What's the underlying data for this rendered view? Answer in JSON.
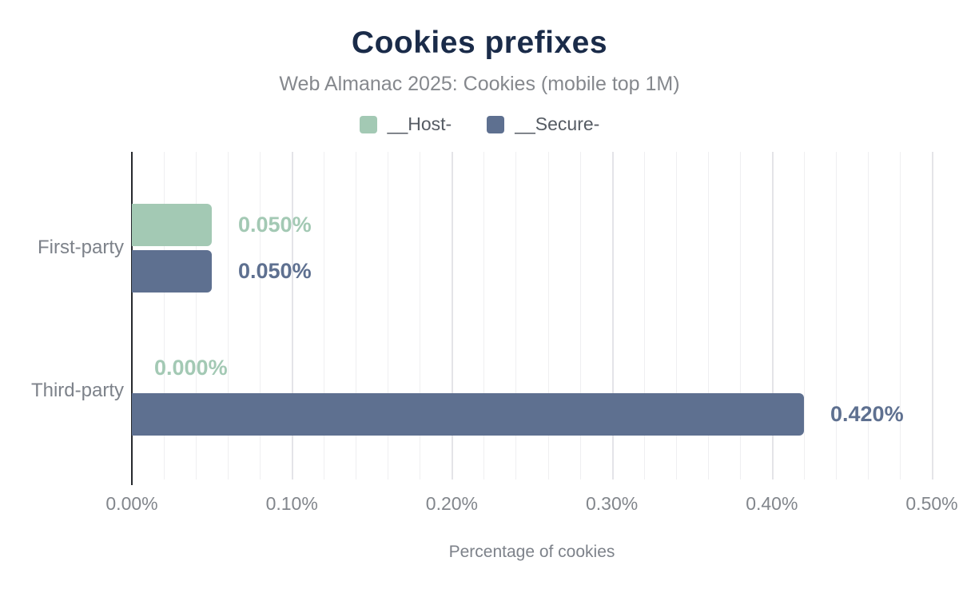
{
  "chart_data": {
    "type": "bar",
    "orientation": "horizontal",
    "title": "Cookies prefixes",
    "subtitle": "Web Almanac 2025: Cookies (mobile top 1M)",
    "categories": [
      "First-party",
      "Third-party"
    ],
    "series": [
      {
        "name": "__Host-",
        "color": "#a3c9b4",
        "values": [
          0.05,
          0.0
        ],
        "value_labels": [
          "0.050%",
          "0.000%"
        ]
      },
      {
        "name": "__Secure-",
        "color": "#5e7090",
        "values": [
          0.05,
          0.42
        ],
        "value_labels": [
          "0.050%",
          "0.420%"
        ]
      }
    ],
    "xlabel": "Percentage of cookies",
    "xlim": [
      0,
      0.5
    ],
    "x_ticks": [
      {
        "value": 0.0,
        "label": "0.00%"
      },
      {
        "value": 0.1,
        "label": "0.10%"
      },
      {
        "value": 0.2,
        "label": "0.20%"
      },
      {
        "value": 0.3,
        "label": "0.30%"
      },
      {
        "value": 0.4,
        "label": "0.40%"
      },
      {
        "value": 0.5,
        "label": "0.50%"
      }
    ],
    "grid": {
      "show": true,
      "minor_step": 0.02,
      "major_step": 0.1,
      "direction": "vertical"
    },
    "legend_position": "top",
    "colors": {
      "title": "#1a2b49",
      "subtitle": "#85888d",
      "axis_line": "#26292e",
      "tick_text": "#82868c",
      "category_text": "#7d828a",
      "gridline_minor": "#efeff1",
      "gridline_major": "#e4e4e8"
    }
  }
}
